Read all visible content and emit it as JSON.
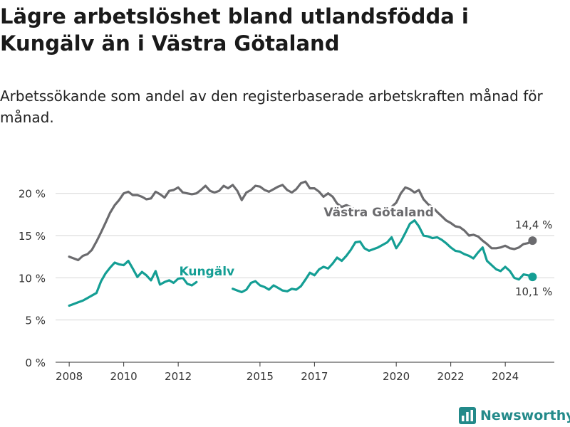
{
  "title": "Lägre arbetslöshet bland utlandsfödda i Kungälv än i Västra Götaland",
  "subtitle": "Arbetssökande som andel av den registerbaserade arbetskraften månad för månad.",
  "brand": {
    "name": "Newsworthy",
    "icon": "newsworthy-logo-icon"
  },
  "chart_data": {
    "type": "line",
    "ylim": [
      0,
      22
    ],
    "xlim": [
      2007.5,
      2025.8
    ],
    "yticks": [
      0,
      5,
      10,
      15,
      20
    ],
    "ytick_labels": [
      "0 %",
      "5 %",
      "10 %",
      "15 %",
      "20 %"
    ],
    "xticks": [
      2008,
      2010,
      2012,
      2015,
      2017,
      2020,
      2022,
      2024
    ],
    "xtick_labels": [
      "2008",
      "2010",
      "2012",
      "2015",
      "2017",
      "2020",
      "2022",
      "2024"
    ],
    "grid": true,
    "series": [
      {
        "name": "Västra Götaland",
        "color": "#6b6b6e",
        "end_label": "14,4 %",
        "points": [
          [
            2008.0,
            12.5
          ],
          [
            2008.17,
            12.3
          ],
          [
            2008.33,
            12.1
          ],
          [
            2008.5,
            12.6
          ],
          [
            2008.67,
            12.8
          ],
          [
            2008.83,
            13.3
          ],
          [
            2009.0,
            14.3
          ],
          [
            2009.17,
            15.4
          ],
          [
            2009.33,
            16.5
          ],
          [
            2009.5,
            17.7
          ],
          [
            2009.67,
            18.6
          ],
          [
            2009.83,
            19.2
          ],
          [
            2010.0,
            20.0
          ],
          [
            2010.17,
            20.2
          ],
          [
            2010.33,
            19.8
          ],
          [
            2010.5,
            19.8
          ],
          [
            2010.67,
            19.6
          ],
          [
            2010.83,
            19.3
          ],
          [
            2011.0,
            19.4
          ],
          [
            2011.17,
            20.2
          ],
          [
            2011.33,
            19.9
          ],
          [
            2011.5,
            19.5
          ],
          [
            2011.67,
            20.3
          ],
          [
            2011.83,
            20.4
          ],
          [
            2012.0,
            20.7
          ],
          [
            2012.17,
            20.1
          ],
          [
            2012.33,
            20.0
          ],
          [
            2012.5,
            19.9
          ],
          [
            2012.67,
            20.0
          ],
          [
            2012.83,
            20.4
          ],
          [
            2013.0,
            20.9
          ],
          [
            2013.17,
            20.3
          ],
          [
            2013.33,
            20.1
          ],
          [
            2013.5,
            20.3
          ],
          [
            2013.67,
            20.9
          ],
          [
            2013.83,
            20.6
          ],
          [
            2014.0,
            21.0
          ],
          [
            2014.17,
            20.3
          ],
          [
            2014.33,
            19.2
          ],
          [
            2014.5,
            20.1
          ],
          [
            2014.67,
            20.4
          ],
          [
            2014.83,
            20.9
          ],
          [
            2015.0,
            20.8
          ],
          [
            2015.17,
            20.4
          ],
          [
            2015.33,
            20.2
          ],
          [
            2015.5,
            20.5
          ],
          [
            2015.67,
            20.8
          ],
          [
            2015.83,
            21.0
          ],
          [
            2016.0,
            20.4
          ],
          [
            2016.17,
            20.1
          ],
          [
            2016.33,
            20.5
          ],
          [
            2016.5,
            21.2
          ],
          [
            2016.67,
            21.4
          ],
          [
            2016.83,
            20.6
          ],
          [
            2017.0,
            20.6
          ],
          [
            2017.17,
            20.2
          ],
          [
            2017.33,
            19.6
          ],
          [
            2017.5,
            20.0
          ],
          [
            2017.67,
            19.6
          ],
          [
            2017.83,
            18.8
          ],
          [
            2018.0,
            18.4
          ],
          [
            2018.17,
            18.6
          ],
          [
            2018.33,
            18.4
          ],
          [
            2018.5,
            18.0
          ]
        ],
        "points_after_gap": [
          [
            2019.83,
            18.4
          ],
          [
            2020.0,
            18.9
          ],
          [
            2020.17,
            20.0
          ],
          [
            2020.33,
            20.7
          ],
          [
            2020.5,
            20.5
          ],
          [
            2020.67,
            20.1
          ],
          [
            2020.83,
            20.4
          ],
          [
            2021.0,
            19.3
          ],
          [
            2021.17,
            18.7
          ],
          [
            2021.33,
            18.4
          ],
          [
            2021.5,
            17.8
          ],
          [
            2021.67,
            17.3
          ],
          [
            2021.83,
            16.8
          ],
          [
            2022.0,
            16.5
          ],
          [
            2022.17,
            16.1
          ],
          [
            2022.33,
            16.0
          ],
          [
            2022.5,
            15.6
          ],
          [
            2022.67,
            15.0
          ],
          [
            2022.83,
            15.1
          ],
          [
            2023.0,
            14.9
          ],
          [
            2023.17,
            14.4
          ],
          [
            2023.33,
            14.0
          ],
          [
            2023.5,
            13.5
          ],
          [
            2023.67,
            13.5
          ],
          [
            2023.83,
            13.6
          ],
          [
            2024.0,
            13.8
          ],
          [
            2024.17,
            13.5
          ],
          [
            2024.33,
            13.4
          ],
          [
            2024.5,
            13.6
          ],
          [
            2024.67,
            14.0
          ],
          [
            2024.83,
            14.1
          ],
          [
            2025.0,
            14.4
          ]
        ]
      },
      {
        "name": "Kungälv",
        "color": "#149e94",
        "end_label": "10,1 %",
        "points": [
          [
            2008.0,
            6.7
          ],
          [
            2008.17,
            6.9
          ],
          [
            2008.33,
            7.1
          ],
          [
            2008.5,
            7.3
          ],
          [
            2008.67,
            7.6
          ],
          [
            2008.83,
            7.9
          ],
          [
            2009.0,
            8.2
          ],
          [
            2009.17,
            9.6
          ],
          [
            2009.33,
            10.5
          ],
          [
            2009.5,
            11.2
          ],
          [
            2009.67,
            11.8
          ],
          [
            2009.83,
            11.6
          ],
          [
            2010.0,
            11.5
          ],
          [
            2010.17,
            12.0
          ],
          [
            2010.33,
            11.1
          ],
          [
            2010.5,
            10.1
          ],
          [
            2010.67,
            10.7
          ],
          [
            2010.83,
            10.3
          ],
          [
            2011.0,
            9.7
          ],
          [
            2011.17,
            10.8
          ],
          [
            2011.33,
            9.2
          ],
          [
            2011.5,
            9.5
          ],
          [
            2011.67,
            9.7
          ],
          [
            2011.83,
            9.4
          ],
          [
            2012.0,
            9.9
          ],
          [
            2012.17,
            10.0
          ],
          [
            2012.33,
            9.3
          ],
          [
            2012.5,
            9.1
          ],
          [
            2012.67,
            9.5
          ]
        ],
        "points_after_gap": [
          [
            2014.0,
            8.7
          ],
          [
            2014.17,
            8.5
          ],
          [
            2014.33,
            8.3
          ],
          [
            2014.5,
            8.6
          ],
          [
            2014.67,
            9.4
          ],
          [
            2014.83,
            9.6
          ],
          [
            2015.0,
            9.1
          ],
          [
            2015.17,
            8.9
          ],
          [
            2015.33,
            8.6
          ],
          [
            2015.5,
            9.1
          ],
          [
            2015.67,
            8.8
          ],
          [
            2015.83,
            8.5
          ],
          [
            2016.0,
            8.4
          ],
          [
            2016.17,
            8.7
          ],
          [
            2016.33,
            8.6
          ],
          [
            2016.5,
            9.0
          ],
          [
            2016.67,
            9.8
          ],
          [
            2016.83,
            10.6
          ],
          [
            2017.0,
            10.3
          ],
          [
            2017.17,
            11.0
          ],
          [
            2017.33,
            11.3
          ],
          [
            2017.5,
            11.1
          ],
          [
            2017.67,
            11.7
          ],
          [
            2017.83,
            12.4
          ],
          [
            2018.0,
            12.0
          ],
          [
            2018.17,
            12.6
          ],
          [
            2018.33,
            13.3
          ],
          [
            2018.5,
            14.2
          ],
          [
            2018.67,
            14.3
          ],
          [
            2018.83,
            13.5
          ],
          [
            2019.0,
            13.2
          ],
          [
            2019.17,
            13.4
          ],
          [
            2019.33,
            13.6
          ],
          [
            2019.5,
            13.9
          ],
          [
            2019.67,
            14.2
          ],
          [
            2019.83,
            14.8
          ],
          [
            2020.0,
            13.5
          ],
          [
            2020.17,
            14.3
          ],
          [
            2020.33,
            15.3
          ],
          [
            2020.5,
            16.4
          ],
          [
            2020.67,
            16.8
          ],
          [
            2020.83,
            16.1
          ],
          [
            2021.0,
            15.0
          ],
          [
            2021.17,
            14.9
          ],
          [
            2021.33,
            14.7
          ],
          [
            2021.5,
            14.8
          ],
          [
            2021.67,
            14.5
          ],
          [
            2021.83,
            14.1
          ],
          [
            2022.0,
            13.6
          ],
          [
            2022.17,
            13.2
          ],
          [
            2022.33,
            13.1
          ],
          [
            2022.5,
            12.8
          ],
          [
            2022.67,
            12.6
          ],
          [
            2022.83,
            12.3
          ],
          [
            2023.0,
            13.0
          ],
          [
            2023.17,
            13.6
          ],
          [
            2023.33,
            12.0
          ],
          [
            2023.5,
            11.5
          ],
          [
            2023.67,
            11.0
          ],
          [
            2023.83,
            10.8
          ],
          [
            2024.0,
            11.3
          ],
          [
            2024.17,
            10.8
          ],
          [
            2024.33,
            10.0
          ],
          [
            2024.5,
            9.8
          ],
          [
            2024.67,
            10.4
          ],
          [
            2024.83,
            10.3
          ],
          [
            2025.0,
            10.1
          ]
        ]
      }
    ]
  }
}
